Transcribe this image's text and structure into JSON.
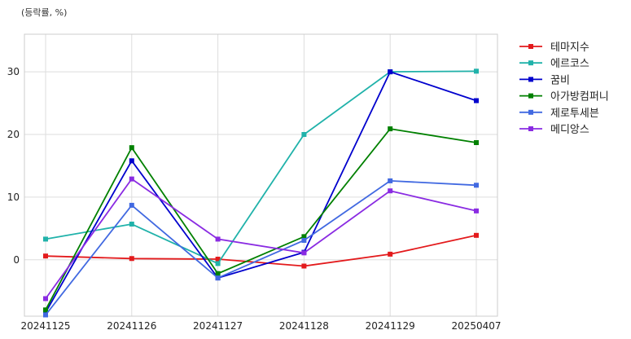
{
  "chart_data": {
    "type": "line",
    "title": "",
    "unit_label": "(등락률, %)",
    "xlabel": "",
    "ylabel": "",
    "categories": [
      "20241125",
      "20241126",
      "20241127",
      "20241128",
      "20241129",
      "20250407"
    ],
    "ylim": [
      -9,
      36
    ],
    "yticks": [
      0,
      10,
      20,
      30
    ],
    "grid": true,
    "legend_position": "outside-right",
    "series": [
      {
        "name": "테마지수",
        "color": "#e31a1c",
        "values": [
          0.6,
          0.2,
          0.1,
          -1.0,
          0.9,
          3.9
        ]
      },
      {
        "name": "에르코스",
        "color": "#20b2aa",
        "values": [
          3.3,
          5.7,
          -0.6,
          20.0,
          30.0,
          30.1
        ]
      },
      {
        "name": "꿈비",
        "color": "#0000cd",
        "values": [
          -8.4,
          15.8,
          -2.9,
          1.2,
          30.0,
          25.4
        ]
      },
      {
        "name": "아가방컴퍼니",
        "color": "#008000",
        "values": [
          -8.0,
          17.9,
          -2.2,
          3.7,
          20.9,
          18.7
        ]
      },
      {
        "name": "제로투세븐",
        "color": "#4169e1",
        "values": [
          -8.8,
          8.7,
          -2.9,
          3.1,
          12.6,
          11.9
        ]
      },
      {
        "name": "메디앙스",
        "color": "#8a2be2",
        "values": [
          -6.2,
          12.9,
          3.3,
          1.1,
          11.0,
          7.8
        ]
      }
    ]
  }
}
